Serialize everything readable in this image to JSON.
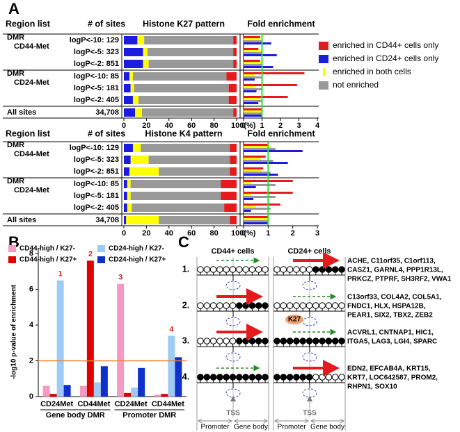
{
  "panel_labels": [
    "A",
    "B",
    "C"
  ],
  "chart_data": [
    {
      "type": "stacked-bar",
      "title": "Histone K27 pattern",
      "columns": [
        "Region list",
        "# of sites"
      ],
      "group_labels": [
        [
          "DMR",
          "CD44-Met"
        ],
        [
          "DMR",
          "CD24-Met"
        ],
        [
          "All sites"
        ]
      ],
      "categories": [
        "logP<-10: 129",
        "logP<-5: 323",
        "logP<-2: 851",
        "logP<-10: 85",
        "logP<-5: 181",
        "logP<-2: 405",
        "34,708"
      ],
      "series": [
        {
          "name": "enriched in CD44+ cells only",
          "color": "#e41a1c",
          "values": [
            3,
            3,
            3,
            9,
            7,
            7,
            3
          ]
        },
        {
          "name": "enriched in CD24+ cells only",
          "color": "#1c1ce0",
          "values": [
            12,
            17,
            17,
            5,
            6,
            8,
            10
          ]
        },
        {
          "name": "enriched in both cells",
          "color": "#ffff00",
          "values": [
            6,
            4,
            5,
            3,
            3,
            5,
            6
          ]
        },
        {
          "name": "not enriched",
          "color": "#999999",
          "values": [
            79,
            76,
            75,
            83,
            84,
            80,
            81
          ]
        }
      ],
      "xlim": [
        0,
        100
      ],
      "xticks": [
        0,
        20,
        40,
        60,
        80,
        {
          "value": 100,
          "label": "100(%)"
        }
      ]
    },
    {
      "type": "bar-h",
      "title": "Fold enrichment",
      "series": [
        {
          "color": "#e41a1c",
          "values": [
            0.9,
            0.8,
            0.9,
            3.3,
            2.9,
            2.4,
            1
          ]
        },
        {
          "color": "#1c1ce0",
          "values": [
            1.5,
            1.8,
            1.6,
            0.6,
            0.7,
            0.8,
            1
          ]
        },
        {
          "color": "#ffff00",
          "values": [
            0.9,
            1,
            1,
            0.6,
            0.6,
            0.9,
            1
          ]
        },
        {
          "color": "#999999",
          "values": [
            1,
            1,
            1,
            1,
            1,
            1,
            1
          ]
        }
      ],
      "xlim": [
        0,
        4
      ],
      "xticks": [
        0,
        1,
        2,
        3,
        4
      ],
      "reference_line": 1,
      "reference_color": "#33dd33"
    },
    {
      "type": "stacked-bar",
      "title": "Histone K4 pattern",
      "columns": [
        "Region list",
        "# of sites"
      ],
      "group_labels": [
        [
          "DMR",
          "CD44-Met"
        ],
        [
          "DMR",
          "CD24-Met"
        ],
        [
          "All sites"
        ]
      ],
      "categories": [
        "logP<-10: 129",
        "logP<-5: 323",
        "logP<-2: 851",
        "logP<-10: 85",
        "logP<-5: 181",
        "logP<-2: 405",
        "34,708"
      ],
      "series": [
        {
          "color": "#e41a1c",
          "values": [
            6,
            6,
            6,
            14,
            14,
            11,
            6
          ]
        },
        {
          "color": "#1c1ce0",
          "values": [
            8,
            6,
            5,
            3,
            3,
            3,
            2
          ]
        },
        {
          "color": "#ffff00",
          "values": [
            7,
            16,
            26,
            3,
            3,
            4,
            29
          ]
        },
        {
          "color": "#999999",
          "values": [
            79,
            72,
            63,
            80,
            80,
            82,
            63
          ]
        }
      ],
      "xlim": [
        0,
        100
      ],
      "xticks": [
        0,
        20,
        40,
        60,
        80,
        {
          "value": 100,
          "label": "100(%)"
        }
      ]
    },
    {
      "type": "bar-h",
      "title": "Fold enrichment",
      "series": [
        {
          "color": "#e41a1c",
          "values": [
            1,
            0.9,
            0.8,
            2,
            2,
            1.5,
            1
          ]
        },
        {
          "color": "#1c1ce0",
          "values": [
            2.4,
            1.8,
            1.4,
            0.5,
            0.4,
            0.3,
            1
          ]
        },
        {
          "color": "#ffff00",
          "values": [
            1.1,
            0.7,
            0.7,
            0.3,
            0.3,
            0.5,
            1
          ]
        },
        {
          "color": "#999999",
          "values": [
            1.3,
            1.2,
            1.1,
            1.3,
            1.3,
            1.1,
            1
          ]
        }
      ],
      "xlim": [
        0,
        3
      ],
      "xticks": [
        0,
        1,
        2,
        3
      ],
      "reference_line": 1,
      "reference_color": "#33dd33"
    },
    {
      "type": "bar",
      "ylabel": "-log10 p-value of enrichment",
      "categories": [
        "CD24Met",
        "CD44Met",
        "CD24Met",
        "CD44Met"
      ],
      "group_labels": [
        "Gene body DMR",
        "Promoter DMR"
      ],
      "series": [
        {
          "name": "CD44-high / K27-",
          "color": "#f59ac3",
          "values": [
            0.6,
            0.6,
            6.3,
            0.1
          ]
        },
        {
          "name": "CD44-high / K27+",
          "color": "#e00000",
          "values": [
            0.15,
            7.6,
            0.2,
            0.15
          ]
        },
        {
          "name": "CD24-high / K27-",
          "color": "#9dcbf3",
          "values": [
            6.5,
            0.8,
            0.5,
            3.4
          ]
        },
        {
          "name": "CD24-high / K27+",
          "color": "#1030cc",
          "values": [
            0.65,
            1.7,
            1.6,
            2.2
          ]
        }
      ],
      "ylim": [
        0,
        8
      ],
      "yticks": [
        0,
        2,
        4,
        6,
        8
      ],
      "reference_line": 2,
      "reference_color": "#f08030",
      "annotations": [
        "1",
        "2",
        "3",
        "4"
      ],
      "annotation_color": "#e02020"
    }
  ],
  "diagram": {
    "headers": [
      "CD44+ cells",
      "CD24+ cells"
    ],
    "rows": [
      {
        "number": "1.",
        "genes": [
          "ACHE, C11orf35, C1orf113,",
          "CASZ1, GARNL4, PPP1R13L,",
          "PRKCZ, PTPRF, SH3RF2, VWA1"
        ]
      },
      {
        "number": "2.",
        "genes": [
          "C13orf33, COL4A2, COL5A1,",
          "FNDC1, HLX, HSPA12B,",
          "PEAR1, SIX2, TBX2, ZEB2"
        ]
      },
      {
        "number": "3.",
        "genes": [
          "ACVRL1, CNTNAP1, HIC1,",
          "ITGA5, LAG3, LGI4, SPARC"
        ]
      },
      {
        "number": "4.",
        "genes": [
          "EDN2, EFCAB4A, KRT15,",
          "KRT7, LOC642587, PROM2,",
          "RHPN1, SOX10"
        ]
      }
    ],
    "k27": "K27",
    "tss": "TSS",
    "promoter": "Promoter",
    "gene_body": "Gene body"
  }
}
